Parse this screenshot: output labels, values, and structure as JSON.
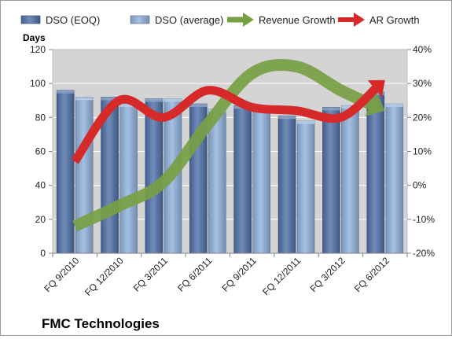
{
  "chart_data": {
    "type": "bar",
    "company": "FMC Technologies",
    "ylabel": "Days",
    "categories": [
      "FQ 9/2010",
      "FQ 12/2010",
      "FQ 3/2011",
      "FQ 6/2011",
      "FQ 9/2011",
      "FQ 12/2011",
      "FQ 3/2012",
      "FQ 6/2012"
    ],
    "ylim": [
      0,
      120
    ],
    "yticks": [
      0,
      20,
      40,
      60,
      80,
      100,
      120
    ],
    "y2lim": [
      -20,
      40
    ],
    "y2ticks": [
      "-20%",
      "-10%",
      "0%",
      "10%",
      "20%",
      "30%",
      "40%"
    ],
    "y2tick_values": [
      -20,
      -10,
      0,
      10,
      20,
      30,
      40
    ],
    "series": [
      {
        "name": "DSO (EOQ)",
        "type": "bar",
        "axis": "left",
        "color": "#4f6fa8",
        "values": [
          96,
          92,
          91,
          88,
          87,
          81,
          86,
          95
        ]
      },
      {
        "name": "DSO (average)",
        "type": "bar",
        "axis": "left",
        "color": "#8fb0db",
        "values": [
          92,
          88,
          91,
          85,
          87,
          78,
          87,
          88
        ]
      },
      {
        "name": "Revenue Growth",
        "type": "line-arrow",
        "axis": "right",
        "unit": "%",
        "color": "#77a044",
        "values": [
          -12,
          -6,
          1,
          18,
          33,
          35,
          28,
          22
        ]
      },
      {
        "name": "AR Growth",
        "type": "line-arrow",
        "axis": "right",
        "unit": "%",
        "color": "#d62a2a",
        "values": [
          7,
          25,
          20,
          28,
          23,
          22,
          20,
          31
        ]
      }
    ],
    "grid": true,
    "legend_position": "top"
  }
}
